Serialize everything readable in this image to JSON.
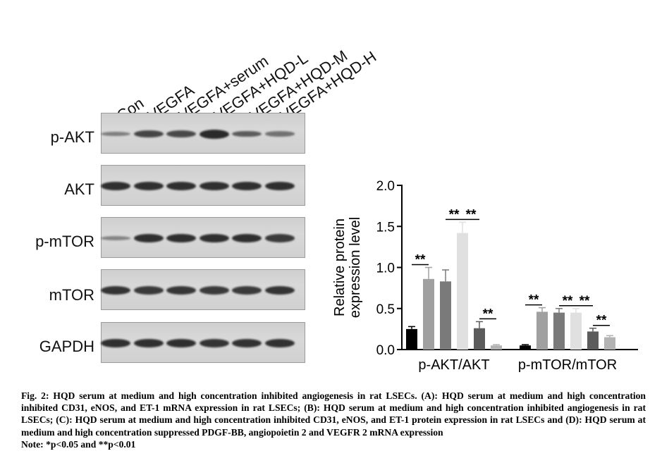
{
  "lanes": [
    "Con",
    "VEGFA",
    "VEGFA+serum",
    "VEGFA+HQD-L",
    "VEGFA+HQD-M",
    "VEGFA+HQD-H"
  ],
  "blots": [
    {
      "label": "p-AKT",
      "intensity": [
        0.25,
        0.75,
        0.72,
        1.0,
        0.55,
        0.35
      ]
    },
    {
      "label": "AKT",
      "intensity": [
        0.95,
        0.95,
        0.95,
        0.95,
        0.95,
        0.95
      ]
    },
    {
      "label": "p-mTOR",
      "intensity": [
        0.2,
        0.95,
        0.95,
        0.95,
        0.95,
        0.85
      ]
    },
    {
      "label": "mTOR",
      "intensity": [
        0.9,
        0.85,
        0.88,
        0.85,
        0.85,
        0.9
      ]
    },
    {
      "label": "GAPDH",
      "intensity": [
        0.95,
        0.95,
        0.95,
        0.9,
        0.92,
        0.92
      ]
    }
  ],
  "chart_data": {
    "type": "bar",
    "categories": [
      "p-AKT/AKT",
      "p-mTOR/mTOR"
    ],
    "ylabel_lines": [
      "Relative protein",
      "expression level"
    ],
    "ylim": [
      0,
      2.0
    ],
    "yticks": [
      "0.0",
      "0.5",
      "1.0",
      "1.5",
      "2.0"
    ],
    "series": [
      {
        "color": "#000000",
        "values": [
          0.25,
          0.05
        ],
        "errors": [
          0.03,
          0.01
        ]
      },
      {
        "color": "#a0a0a0",
        "values": [
          0.86,
          0.46
        ],
        "errors": [
          0.14,
          0.05
        ]
      },
      {
        "color": "#7a7a7a",
        "values": [
          0.83,
          0.45
        ],
        "errors": [
          0.14,
          0.05
        ]
      },
      {
        "color": "#e0e0e0",
        "values": [
          1.42,
          0.45
        ],
        "errors": [
          0.13,
          0.05
        ]
      },
      {
        "color": "#5c5c5c",
        "values": [
          0.26,
          0.22
        ],
        "errors": [
          0.08,
          0.04
        ]
      },
      {
        "color": "#b3b3b3",
        "values": [
          0.05,
          0.15
        ],
        "errors": [
          0.01,
          0.02
        ]
      }
    ],
    "annotations": [
      "**",
      "**",
      "**",
      "**",
      "**",
      "**",
      "**",
      "**"
    ]
  },
  "caption": {
    "line1": "Fig. 2: HQD serum at medium and high concentration inhibited angiogenesis in rat LSECs. (A): HQD serum at medium and high concentration inhibited CD31, eNOS, and ET-1 mRNA expression in rat LSECs; (B): HQD serum at medium and high concentration inhibited angiogenesis in rat LSECs; (C): HQD serum at medium and high concentration inhibited CD31, eNOS, and ET-1 protein expression in rat LSECs and (D): HQD serum at medium and high concentration suppressed PDGF-BB, angiopoietin 2 and VEGFR 2 mRNA expression",
    "note": "Note: *p<0.05 and **p<0.01"
  }
}
